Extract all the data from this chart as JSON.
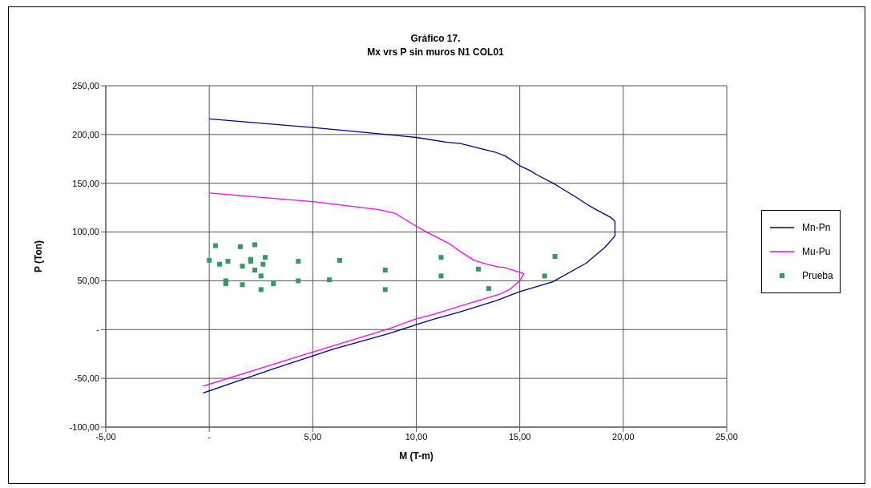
{
  "chart_data": {
    "type": "line",
    "title": "Gráfico 17.\nMx vrs P sin muros N1 COL01",
    "xlabel": "M (T-m)",
    "ylabel": "P (Ton)",
    "xlim": [
      -5,
      25
    ],
    "xticks": [
      {
        "value": -5,
        "label": "-5,00"
      },
      {
        "value": 0,
        "label": "-"
      },
      {
        "value": 5,
        "label": "5,00"
      },
      {
        "value": 10,
        "label": "10,00"
      },
      {
        "value": 15,
        "label": "15,00"
      },
      {
        "value": 20,
        "label": "20,00"
      },
      {
        "value": 25,
        "label": "25,00"
      }
    ],
    "ylim": [
      -100,
      250
    ],
    "yticks": [
      {
        "value": -100,
        "label": "-100,00"
      },
      {
        "value": -50,
        "label": "-50,00"
      },
      {
        "value": 0,
        "label": "-"
      },
      {
        "value": 50,
        "label": "50,00"
      },
      {
        "value": 100,
        "label": "100,00"
      },
      {
        "value": 150,
        "label": "150,00"
      },
      {
        "value": 200,
        "label": "200,00"
      },
      {
        "value": 250,
        "label": "250,00"
      }
    ],
    "grid": true,
    "legend": "right",
    "marker": "none",
    "series": [
      {
        "name": "Mn-Pn",
        "color": "#000080",
        "x": [
          0,
          5.1,
          8.6,
          10,
          11.5,
          12.1,
          13.8,
          14.3,
          15,
          15.5,
          15.8,
          16.7,
          17.7,
          18.2,
          18.6,
          19.4,
          19.6,
          19.6,
          19.6,
          19.1,
          18.2,
          16.6,
          15.5,
          15,
          13.9,
          12.1,
          10.9,
          10,
          8.7,
          6,
          3,
          -0.3
        ],
        "values": [
          216,
          207,
          200,
          197,
          192,
          191,
          182,
          178,
          168,
          163,
          159,
          149,
          136,
          129,
          124,
          115,
          111,
          103,
          96,
          84,
          68,
          49,
          42,
          39,
          30,
          18,
          11,
          5,
          -4,
          -20,
          -41,
          -65
        ]
      },
      {
        "name": "Mu-Pu",
        "color": "#ff00ff",
        "x": [
          0,
          5.1,
          8.2,
          9,
          10,
          10.5,
          11.6,
          12.2,
          12.8,
          13.4,
          14,
          14.2,
          15.1,
          15.2,
          15,
          14.5,
          14,
          12.1,
          10.9,
          10,
          8.7,
          4.4,
          -0.3
        ],
        "values": [
          140,
          131,
          123,
          119,
          106,
          100,
          88,
          79,
          71,
          67,
          64,
          64,
          58,
          57,
          50,
          41,
          36,
          24,
          16,
          11,
          1,
          -27,
          -58
        ]
      },
      {
        "name": "Prueba",
        "type": "scatter",
        "marker": "square",
        "color": "#339966",
        "x": [
          0.3,
          1.5,
          2.2,
          0,
          0.5,
          0.9,
          1.6,
          2,
          2,
          2.7,
          2.6,
          2.2,
          2.5,
          0.8,
          0.8,
          1.6,
          2.5,
          3.1,
          4.3,
          4.3,
          6.3,
          5.8,
          8.5,
          8.5,
          11.2,
          11.2,
          13,
          13.5,
          16.7,
          16.2
        ],
        "values": [
          86,
          85,
          87,
          71,
          67,
          70,
          65,
          72,
          70,
          74,
          67,
          61,
          55,
          50,
          47,
          46,
          41,
          47,
          70,
          50,
          71,
          51,
          61,
          41,
          74,
          55,
          62,
          42,
          75,
          55
        ]
      }
    ]
  }
}
